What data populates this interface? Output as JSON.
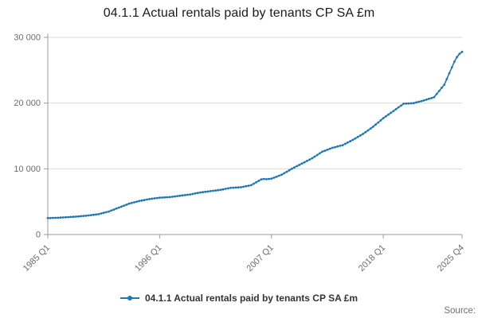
{
  "title": "04.1.1 Actual rentals paid by tenants CP SA £m",
  "source_label": "Source:",
  "legend": {
    "items": [
      {
        "label": "04.1.1 Actual rentals paid by tenants CP SA £m",
        "marker": "line-with-dot"
      }
    ]
  },
  "colors": {
    "line": "#1f77b4",
    "grid": "#d9d9d9",
    "axis": "#9a9a9a",
    "tick_text": "#6b6b6b"
  },
  "chart_data": {
    "type": "line",
    "title": "04.1.1 Actual rentals paid by tenants CP SA £m",
    "xlabel": "",
    "ylabel": "",
    "legend_position": "bottom-center",
    "grid": "horizontal",
    "markers": true,
    "ylim": [
      0,
      30000
    ],
    "y_ticks": [
      {
        "label": "0",
        "value": 0
      },
      {
        "label": "10 000",
        "value": 10000
      },
      {
        "label": "20 000",
        "value": 20000
      },
      {
        "label": "30 000",
        "value": 30000
      }
    ],
    "x_ticks": [
      {
        "label": "1985 Q1",
        "index": 0
      },
      {
        "label": "1996 Q1",
        "index": 44
      },
      {
        "label": "2007 Q1",
        "index": 88
      },
      {
        "label": "2018 Q1",
        "index": 132
      },
      {
        "label": "2025 Q4",
        "index": 163
      }
    ],
    "series": [
      {
        "name": "04.1.1 Actual rentals paid by tenants CP SA £m",
        "frequency": "quarterly",
        "start": "1985 Q1",
        "end": "2025 Q4",
        "values": [
          2500,
          2510,
          2525,
          2540,
          2550,
          2575,
          2600,
          2625,
          2650,
          2675,
          2700,
          2725,
          2750,
          2790,
          2825,
          2860,
          2900,
          2950,
          3000,
          3050,
          3100,
          3200,
          3300,
          3400,
          3500,
          3650,
          3800,
          3950,
          4100,
          4250,
          4400,
          4550,
          4700,
          4800,
          4900,
          5000,
          5100,
          5175,
          5250,
          5325,
          5400,
          5450,
          5500,
          5550,
          5600,
          5625,
          5650,
          5675,
          5700,
          5750,
          5800,
          5850,
          5900,
          5950,
          6000,
          6050,
          6100,
          6175,
          6250,
          6325,
          6400,
          6450,
          6500,
          6550,
          6600,
          6650,
          6700,
          6750,
          6800,
          6875,
          6950,
          7025,
          7100,
          7125,
          7150,
          7175,
          7200,
          7275,
          7350,
          7425,
          7500,
          7725,
          7950,
          8175,
          8400,
          8450,
          8425,
          8450,
          8500,
          8650,
          8800,
          8950,
          9100,
          9325,
          9550,
          9775,
          10000,
          10200,
          10400,
          10600,
          10800,
          11000,
          11200,
          11400,
          11600,
          11850,
          12100,
          12350,
          12600,
          12750,
          12900,
          13050,
          13200,
          13300,
          13400,
          13500,
          13600,
          13800,
          14000,
          14200,
          14400,
          14625,
          14850,
          15075,
          15300,
          15575,
          15850,
          16125,
          16400,
          16725,
          17050,
          17375,
          17700,
          17975,
          18250,
          18525,
          18800,
          19075,
          19350,
          19625,
          19900,
          19925,
          19950,
          19975,
          20000,
          20100,
          20200,
          20300,
          20400,
          20525,
          20650,
          20775,
          20900,
          21375,
          21850,
          22325,
          22800,
          23675,
          24550,
          25425,
          26300,
          27000,
          27500,
          27800
        ]
      }
    ]
  }
}
